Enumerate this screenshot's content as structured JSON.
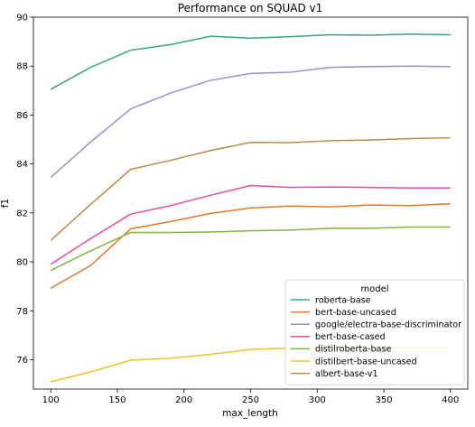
{
  "chart_data": {
    "type": "line",
    "title": "Performance on SQUAD v1",
    "xlabel": "max_length",
    "ylabel": "f1",
    "xlim": [
      87,
      413
    ],
    "ylim": [
      74.8,
      90.0
    ],
    "xticks": [
      100,
      150,
      200,
      250,
      300,
      350,
      400
    ],
    "yticks": [
      76,
      78,
      80,
      82,
      84,
      86,
      88,
      90
    ],
    "grid": false,
    "legend": {
      "title": "model",
      "placement": "lower-right"
    },
    "x": [
      100,
      130,
      160,
      190,
      220,
      250,
      280,
      310,
      340,
      370,
      400
    ],
    "series": [
      {
        "name": "roberta-base",
        "color": "#3aa686",
        "values": [
          87.05,
          87.95,
          88.65,
          88.88,
          89.22,
          89.14,
          89.2,
          89.28,
          89.26,
          89.31,
          89.28
        ]
      },
      {
        "name": "bert-base-uncased",
        "color": "#e07b2c",
        "values": [
          78.92,
          79.85,
          81.35,
          81.65,
          81.98,
          82.2,
          82.28,
          82.25,
          82.32,
          82.3,
          82.37
        ]
      },
      {
        "name": "google/electra-base-discriminator",
        "color": "#9a93c8",
        "values": [
          83.45,
          84.9,
          86.25,
          86.9,
          87.42,
          87.7,
          87.75,
          87.95,
          87.98,
          88.0,
          87.98
        ]
      },
      {
        "name": "bert-base-cased",
        "color": "#e94b9a",
        "values": [
          79.9,
          80.95,
          81.95,
          82.3,
          82.72,
          83.12,
          83.04,
          83.06,
          83.04,
          83.02,
          83.02
        ]
      },
      {
        "name": "distilroberta-base",
        "color": "#7eb83c",
        "values": [
          79.65,
          80.45,
          81.2,
          81.2,
          81.22,
          81.27,
          81.3,
          81.37,
          81.37,
          81.42,
          81.42
        ]
      },
      {
        "name": "distilbert-base-uncased",
        "color": "#eec02e",
        "values": [
          75.1,
          75.5,
          75.98,
          76.06,
          76.22,
          76.42,
          76.48,
          76.5,
          76.5,
          76.5,
          76.5
        ]
      },
      {
        "name": "albert-base-v1",
        "color": "#b58e47",
        "values": [
          80.88,
          82.35,
          83.78,
          84.15,
          84.55,
          84.88,
          84.87,
          84.95,
          84.98,
          85.04,
          85.07
        ]
      }
    ]
  }
}
